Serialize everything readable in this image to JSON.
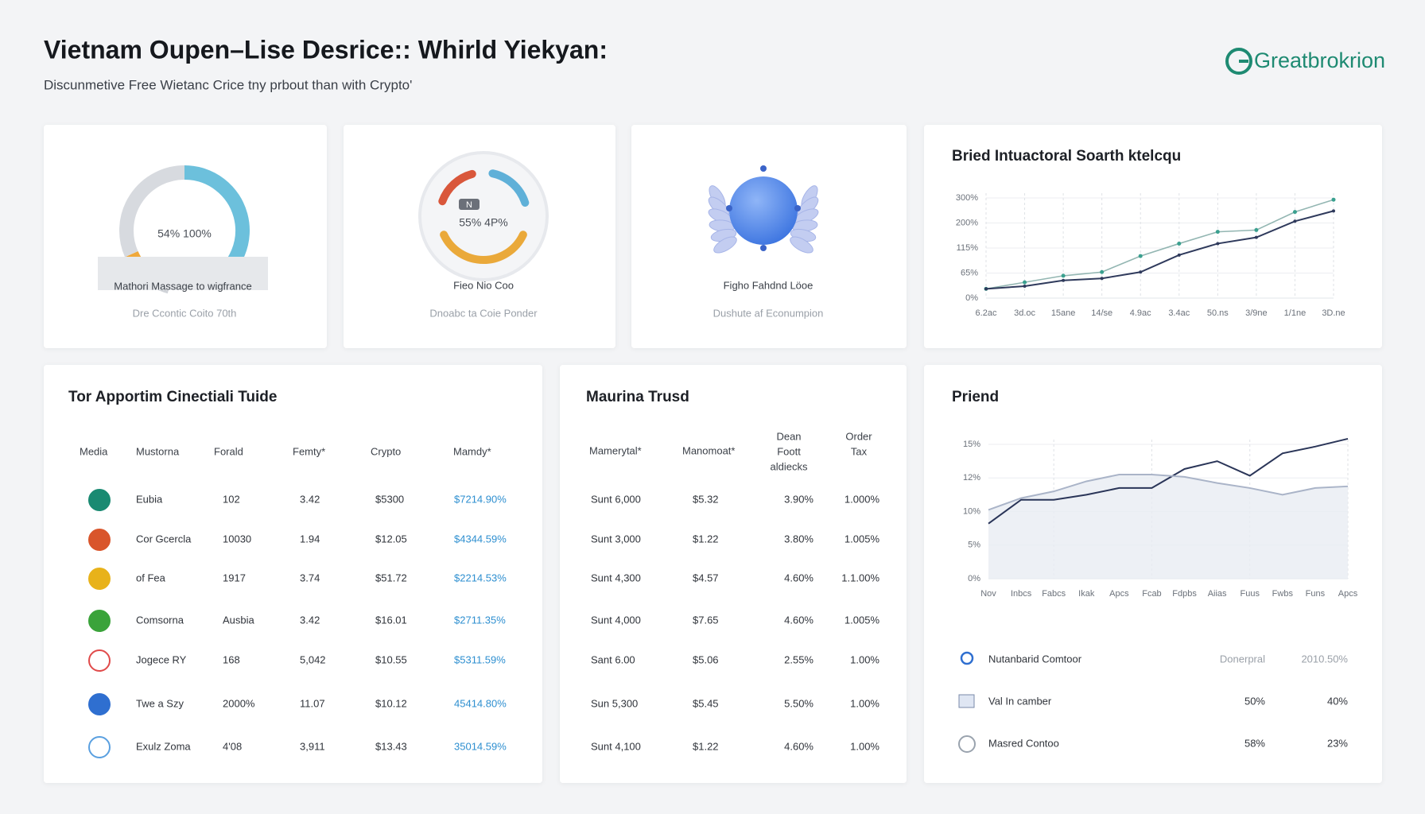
{
  "header": {
    "title": "Vietnam Oupen–Lise Desrice:: Whirld Yiekyan:",
    "subtitle": "Discunmetive Free Wietanc Crice tny prbout than with Crypto'",
    "logo": "Greatbrokrion"
  },
  "cards": [
    {
      "center_text": "54% 100%",
      "label": "Mathori Massage to wigfrance",
      "caption": "Dre Ccontic Coito 70th"
    },
    {
      "badge": "N",
      "center_text": "55% 4P%",
      "label": "Fieo Nio Coo",
      "caption": "Dnoabc ta Coie Ponder"
    },
    {
      "label": "Figho Fahdnd Löoe",
      "caption": "Dushute af Econumpion"
    }
  ],
  "trend_chart": {
    "title": "Bried Intuactoral Soarth ktelcqu",
    "categories": [
      "6.2ac",
      "3d.oc",
      "15ane",
      "14/se",
      "4.9ac",
      "3.4ac",
      "50.ns",
      "3/9ne",
      "1/1ne",
      "3D.ne"
    ],
    "yticks": [
      {
        "value": 0,
        "label": "0%"
      },
      {
        "value": 65,
        "label": "65%"
      },
      {
        "value": 115,
        "label": "115%"
      },
      {
        "value": 200,
        "label": "200%"
      },
      {
        "value": 300,
        "label": "300%"
      }
    ],
    "series": [
      {
        "color": "#93b6b2",
        "values": [
          24,
          41,
          58,
          67,
          99,
          130,
          170,
          176,
          244,
          293
        ]
      },
      {
        "color": "#2f3a5c",
        "values": [
          24,
          31,
          46,
          51,
          67,
          101,
          130,
          151,
          207,
          248
        ]
      }
    ]
  },
  "table_1": {
    "title": "Tor Apportim Cinectiali Tuide",
    "header": [
      "Media",
      "Mustorna",
      "Forald",
      "Femty*",
      "Crypto",
      "Mamdy*"
    ],
    "rows": [
      [
        "Eubia",
        "102",
        "3.42",
        "$5300",
        "$7214.90%"
      ],
      [
        "Cor Gcercla",
        "10030",
        "1.94",
        "$12.05",
        "$4344.59%"
      ],
      [
        "of Fea",
        "1917",
        "3.74",
        "$51.72",
        "$2214.53%"
      ],
      [
        "Comsorna",
        "Ausbia",
        "3.42",
        "$16.01",
        "$2711.35%"
      ],
      [
        "Jogece RY",
        "168",
        "5,042",
        "$10.55",
        "$5311.59%"
      ],
      [
        "Twe a Szy",
        "2000%",
        "11.07",
        "$10.12",
        "45414.80%"
      ],
      [
        "Exulz Zoma",
        "4'08",
        "3,911",
        "$13.43",
        "35014.59%"
      ]
    ]
  },
  "table_2": {
    "title": "Maurina Trusd",
    "header": [
      "Mamerytal*",
      "Manomoat*",
      [
        "Dean",
        "Foott",
        "aldiecks"
      ],
      [
        "Order",
        "Tax"
      ]
    ],
    "rows": [
      [
        "Sunt 6,000",
        "$5.32",
        "3.90%",
        "1.000%"
      ],
      [
        "Sunt 3,000",
        "$1.22",
        "3.80%",
        "1.005%"
      ],
      [
        "Sunt 4,300",
        "$4.57",
        "4.60%",
        "1.1.00%"
      ],
      [
        "Sunt 4,000",
        "$7.65",
        "4.60%",
        "1.005%"
      ],
      [
        "Sant 6.00",
        "$5.06",
        "2.55%",
        "1.00%"
      ],
      [
        "Sun 5,300",
        "$5.45",
        "5.50%",
        "1.00%"
      ],
      [
        "Sunt 4,100",
        "$1.22",
        "4.60%",
        "1.00%"
      ]
    ]
  },
  "priend_chart": {
    "title": "Priend",
    "categories": [
      "Nov",
      "Inbcs",
      "Fabcs",
      "Ikak",
      "Apcs",
      "Fcab",
      "Fdpbs",
      "Aiias",
      "Fuus",
      "Fwbs",
      "Funs",
      "Apcs"
    ],
    "yticks": [
      {
        "value": 0,
        "label": "0%"
      },
      {
        "value": 5,
        "label": "5%"
      },
      {
        "value": 10,
        "label": "10%"
      },
      {
        "value": 12,
        "label": "12%"
      },
      {
        "value": 15,
        "label": "15%"
      }
    ],
    "series": [
      {
        "color": "#2a3558",
        "values": [
          8.2,
          10.7,
          10.7,
          11.0,
          11.4,
          11.4,
          12.8,
          13.5,
          12.2,
          14.2,
          14.8,
          15.5
        ]
      },
      {
        "color": "#aab4c8",
        "values": [
          10.1,
          10.8,
          11.2,
          11.8,
          12.3,
          12.3,
          12.1,
          11.7,
          11.4,
          11.0,
          11.4,
          11.5
        ]
      }
    ]
  },
  "legend_list": {
    "rows": [
      [
        "Nutanbarid Comtoor",
        "Donerpral",
        "2010.50%"
      ],
      [
        "Val In camber",
        "50%",
        "40%"
      ],
      [
        "Masred Contoo",
        "58%",
        "23%"
      ]
    ]
  }
}
